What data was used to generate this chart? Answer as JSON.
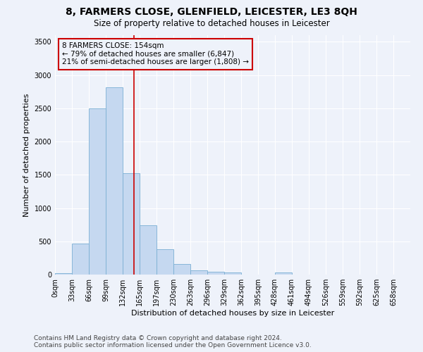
{
  "title": "8, FARMERS CLOSE, GLENFIELD, LEICESTER, LE3 8QH",
  "subtitle": "Size of property relative to detached houses in Leicester",
  "xlabel": "Distribution of detached houses by size in Leicester",
  "ylabel": "Number of detached properties",
  "bar_values": [
    20,
    470,
    2500,
    2820,
    1520,
    740,
    385,
    155,
    65,
    45,
    30,
    0,
    0,
    30,
    0,
    0,
    0,
    0,
    0,
    0,
    0
  ],
  "bar_labels": [
    "0sqm",
    "33sqm",
    "66sqm",
    "99sqm",
    "132sqm",
    "165sqm",
    "197sqm",
    "230sqm",
    "263sqm",
    "296sqm",
    "329sqm",
    "362sqm",
    "395sqm",
    "428sqm",
    "461sqm",
    "494sqm",
    "526sqm",
    "559sqm",
    "592sqm",
    "625sqm",
    "658sqm"
  ],
  "bar_color": "#c5d8f0",
  "bar_edgecolor": "#7bafd4",
  "background_color": "#eef2fa",
  "vline_color": "#cc0000",
  "annotation_text": "8 FARMERS CLOSE: 154sqm\n← 79% of detached houses are smaller (6,847)\n21% of semi-detached houses are larger (1,808) →",
  "annotation_box_edgecolor": "#cc0000",
  "ylim": [
    0,
    3600
  ],
  "yticks": [
    0,
    500,
    1000,
    1500,
    2000,
    2500,
    3000,
    3500
  ],
  "footer_line1": "Contains HM Land Registry data © Crown copyright and database right 2024.",
  "footer_line2": "Contains public sector information licensed under the Open Government Licence v3.0.",
  "title_fontsize": 10,
  "subtitle_fontsize": 8.5,
  "xlabel_fontsize": 8,
  "ylabel_fontsize": 8,
  "tick_fontsize": 7,
  "annotation_fontsize": 7.5,
  "footer_fontsize": 6.5
}
